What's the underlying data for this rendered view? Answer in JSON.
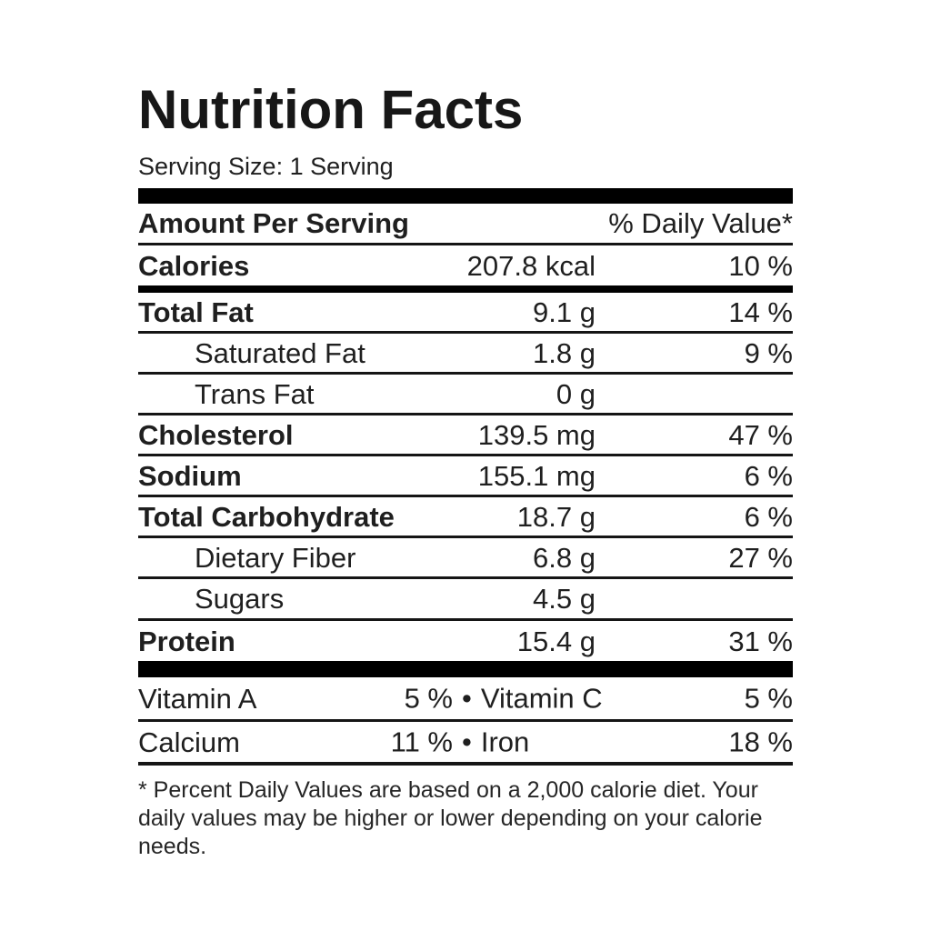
{
  "title": "Nutrition Facts",
  "serving_size": "Serving Size: 1 Serving",
  "header": {
    "amount_label": "Amount Per Serving",
    "dv_label": "% Daily Value*"
  },
  "rows": [
    {
      "label": "Calories",
      "amount": "207.8 kcal",
      "dv": "10 %"
    },
    {
      "label": "Total Fat",
      "amount": "9.1 g",
      "dv": "14 %"
    },
    {
      "label": "Saturated Fat",
      "amount": "1.8 g",
      "dv": "9 %"
    },
    {
      "label": "Trans Fat",
      "amount": "0 g",
      "dv": ""
    },
    {
      "label": "Cholesterol",
      "amount": "139.5 mg",
      "dv": "47 %"
    },
    {
      "label": "Sodium",
      "amount": "155.1 mg",
      "dv": "6 %"
    },
    {
      "label": "Total Carbohydrate",
      "amount": "18.7 g",
      "dv": "6 %"
    },
    {
      "label": "Dietary Fiber",
      "amount": "6.8 g",
      "dv": "27 %"
    },
    {
      "label": "Sugars",
      "amount": "4.5 g",
      "dv": ""
    },
    {
      "label": "Protein",
      "amount": "15.4 g",
      "dv": "31 %"
    }
  ],
  "micros": [
    {
      "label": "Vitamin A",
      "value": "5 %",
      "separator": "•",
      "label2": "Vitamin C",
      "value2": "5 %"
    },
    {
      "label": "Calcium",
      "value": "11 %",
      "separator": "•",
      "label2": "Iron",
      "value2": "18 %"
    }
  ],
  "footnote_lines": [
    "* Percent Daily Values are based on a 2,000 calorie diet. Your",
    "daily values may be higher or lower depending on your calorie",
    "needs."
  ],
  "colors": {
    "background": "#ffffff",
    "text": "#1f1f1f",
    "bar": "#000000"
  }
}
